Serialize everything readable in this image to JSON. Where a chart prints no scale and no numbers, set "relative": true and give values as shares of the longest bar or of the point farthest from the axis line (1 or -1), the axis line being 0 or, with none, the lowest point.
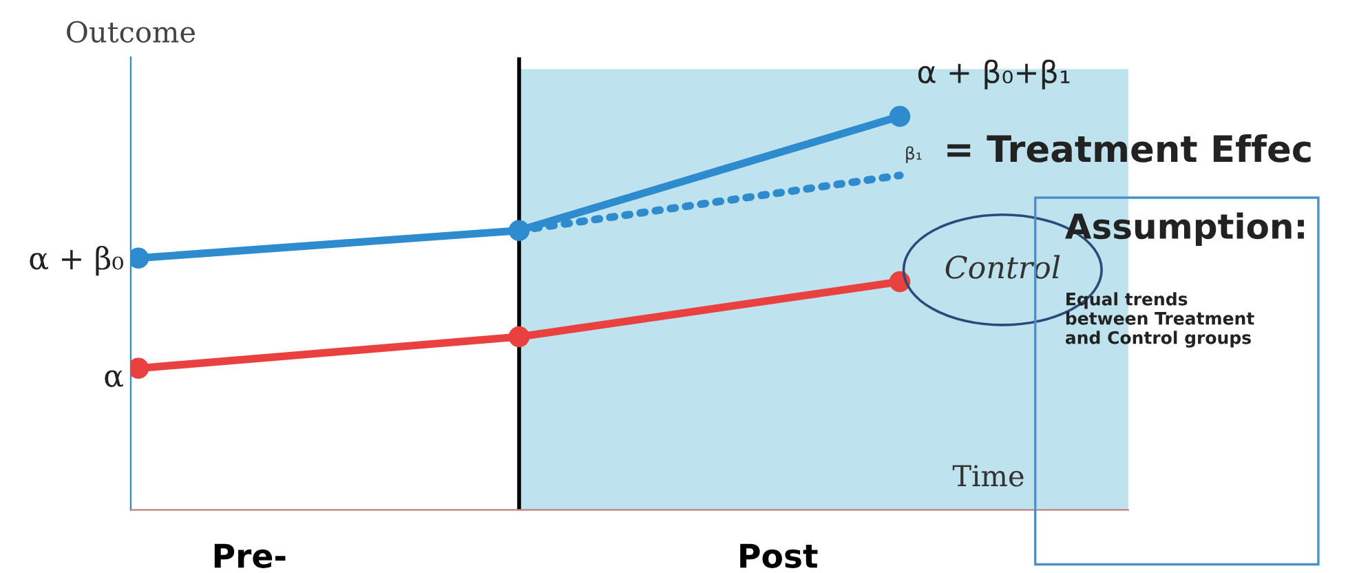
{
  "chart_data": {
    "type": "line",
    "relative": true,
    "ylabel": "Outcome",
    "xlabel": "Time",
    "categories": [
      null,
      null,
      null
    ],
    "series": [
      {
        "color": "#2e8bcd",
        "values": [
          0.64,
          0.71,
          1
        ],
        "marker": "circle",
        "line_style": "solid"
      },
      {
        "color": "#2e8bcd",
        "values": [
          null,
          0.71,
          0.85
        ],
        "marker": "none",
        "line_style": "dotted"
      },
      {
        "name": "Control",
        "color": "#e8413f",
        "values": [
          0.36,
          0.44,
          0.58
        ],
        "marker": "circle",
        "line_style": "solid"
      }
    ],
    "annotations": [
      "α + β₀",
      "α",
      "α + β₀+β₁",
      "β₁",
      "= Treatment Effec",
      "Pre-",
      "Post",
      "Assumption:",
      "Equal trends\nbetween Treatment\nand Control groups"
    ],
    "legend": false,
    "tick_labels": false
  }
}
